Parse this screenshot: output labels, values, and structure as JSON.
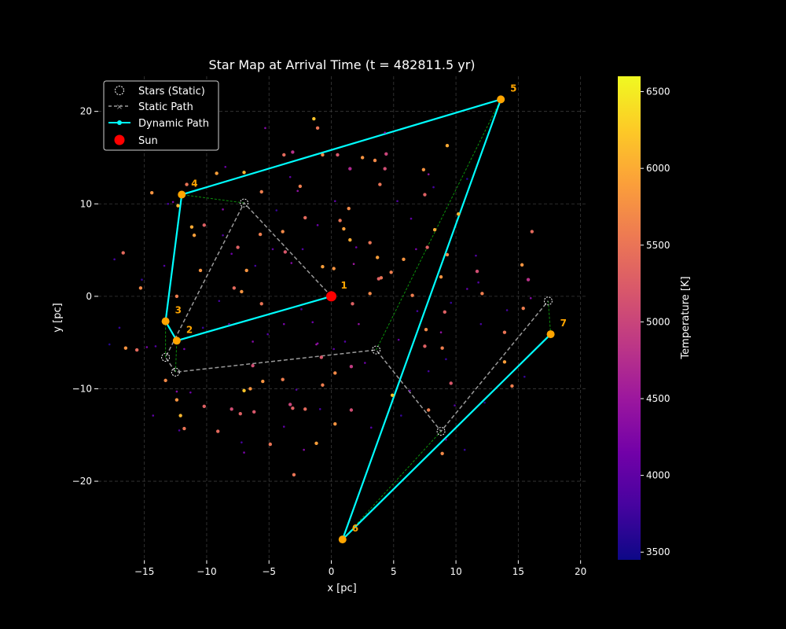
{
  "chart_data": {
    "type": "scatter",
    "title": "Star Map at Arrival Time (t = 482811.5 yr)",
    "xlabel": "x [pc]",
    "ylabel": "y [pc]",
    "xlim": [
      -18.7,
      20.4
    ],
    "ylim": [
      -28.5,
      23.8
    ],
    "xticks": [
      -15,
      -10,
      -5,
      0,
      5,
      10,
      15,
      20
    ],
    "yticks": [
      -20,
      -10,
      0,
      10,
      20
    ],
    "grid": true,
    "legend_location": "top-left",
    "legend": [
      {
        "label": "Stars (Static)",
        "marker": "dashed-circle"
      },
      {
        "label": "Static Path",
        "marker": "gray-dashed-line-x"
      },
      {
        "label": "Dynamic Path",
        "marker": "cyan-line-dot"
      },
      {
        "label": "Sun",
        "marker": "red-dot"
      }
    ],
    "sun": {
      "x": 0.0,
      "y": 0.0,
      "color": "#ff0000"
    },
    "static_path": [
      {
        "x": 0.0,
        "y": 0.0
      },
      {
        "x": -7.0,
        "y": 10.1
      },
      {
        "x": -13.3,
        "y": -6.6
      },
      {
        "x": -12.5,
        "y": -8.2
      },
      {
        "x": 3.6,
        "y": -5.8
      },
      {
        "x": 8.8,
        "y": -14.6
      },
      {
        "x": 17.4,
        "y": -0.5
      }
    ],
    "dynamic_path": [
      {
        "id": "1",
        "x": 0.0,
        "y": 0.0
      },
      {
        "id": "2",
        "x": -12.4,
        "y": -4.8
      },
      {
        "id": "3",
        "x": -13.3,
        "y": -2.7
      },
      {
        "id": "4",
        "x": -12.0,
        "y": 11.0
      },
      {
        "id": "5",
        "x": 13.6,
        "y": 21.3
      },
      {
        "id": "6",
        "x": 0.9,
        "y": -26.3
      },
      {
        "id": "7",
        "x": 17.6,
        "y": -4.1
      }
    ],
    "colorbar": {
      "label": "Temperature [K]",
      "range": [
        3450,
        6600
      ],
      "ticks": [
        3500,
        4000,
        4500,
        5000,
        5500,
        6000,
        6500
      ],
      "colors": [
        "#0d0887",
        "#46039f",
        "#7201a8",
        "#9c179e",
        "#bd3786",
        "#d8576b",
        "#ed7953",
        "#fb9f3a",
        "#fdca26",
        "#f0f921"
      ]
    },
    "background_stars": [
      {
        "x": -14.4,
        "y": 11.2,
        "t": 5800
      },
      {
        "x": -12.3,
        "y": 9.8,
        "t": 6100
      },
      {
        "x": -11.6,
        "y": 12.1,
        "t": 5500
      },
      {
        "x": -11.2,
        "y": 7.5,
        "t": 6000
      },
      {
        "x": -11.0,
        "y": 6.6,
        "t": 5900
      },
      {
        "x": -10.2,
        "y": 7.7,
        "t": 5300
      },
      {
        "x": -9.2,
        "y": 13.3,
        "t": 5900
      },
      {
        "x": -8.5,
        "y": 14.0,
        "t": 4100
      },
      {
        "x": -7.0,
        "y": 13.4,
        "t": 6100
      },
      {
        "x": -5.6,
        "y": 11.3,
        "t": 5600
      },
      {
        "x": -5.3,
        "y": 18.2,
        "t": 4300
      },
      {
        "x": -3.8,
        "y": 15.3,
        "t": 5400
      },
      {
        "x": -3.1,
        "y": 15.6,
        "t": 4800
      },
      {
        "x": -2.7,
        "y": 11.4,
        "t": 4400
      },
      {
        "x": -2.5,
        "y": 11.9,
        "t": 5600
      },
      {
        "x": -1.4,
        "y": 19.2,
        "t": 6200
      },
      {
        "x": -1.1,
        "y": 18.2,
        "t": 5500
      },
      {
        "x": -0.7,
        "y": 15.3,
        "t": 5700
      },
      {
        "x": 0.5,
        "y": 15.3,
        "t": 5200
      },
      {
        "x": 1.5,
        "y": 13.8,
        "t": 4700
      },
      {
        "x": 2.5,
        "y": 15.0,
        "t": 5800
      },
      {
        "x": 3.5,
        "y": 14.7,
        "t": 5700
      },
      {
        "x": 4.4,
        "y": 15.4,
        "t": 5000
      },
      {
        "x": 4.3,
        "y": 13.8,
        "t": 5100
      },
      {
        "x": 3.9,
        "y": 12.1,
        "t": 5500
      },
      {
        "x": 7.4,
        "y": 13.7,
        "t": 5800
      },
      {
        "x": 7.8,
        "y": 13.2,
        "t": 4400
      },
      {
        "x": 9.3,
        "y": 16.3,
        "t": 6000
      },
      {
        "x": 10.2,
        "y": 8.9,
        "t": 6100
      },
      {
        "x": 7.5,
        "y": 11.0,
        "t": 5300
      },
      {
        "x": -5.7,
        "y": 6.7,
        "t": 5600
      },
      {
        "x": -3.9,
        "y": 7.0,
        "t": 5700
      },
      {
        "x": -2.1,
        "y": 8.5,
        "t": 5400
      },
      {
        "x": 0.7,
        "y": 8.2,
        "t": 5500
      },
      {
        "x": 1.4,
        "y": 9.5,
        "t": 5700
      },
      {
        "x": 1.0,
        "y": 7.3,
        "t": 5900
      },
      {
        "x": -7.5,
        "y": 5.3,
        "t": 5300
      },
      {
        "x": -6.8,
        "y": 2.8,
        "t": 5800
      },
      {
        "x": -3.7,
        "y": 4.8,
        "t": 5200
      },
      {
        "x": -0.7,
        "y": 3.2,
        "t": 5900
      },
      {
        "x": 0.2,
        "y": 3.0,
        "t": 5800
      },
      {
        "x": 1.5,
        "y": 6.1,
        "t": 6000
      },
      {
        "x": 3.1,
        "y": 5.8,
        "t": 5500
      },
      {
        "x": 3.7,
        "y": 4.2,
        "t": 5900
      },
      {
        "x": 5.8,
        "y": 4.0,
        "t": 5800
      },
      {
        "x": 7.7,
        "y": 5.3,
        "t": 5300
      },
      {
        "x": 8.3,
        "y": 7.2,
        "t": 6000
      },
      {
        "x": 9.3,
        "y": 4.5,
        "t": 5700
      },
      {
        "x": 3.8,
        "y": 1.9,
        "t": 5300
      },
      {
        "x": 4.0,
        "y": 2.0,
        "t": 5500
      },
      {
        "x": 4.8,
        "y": 2.6,
        "t": 5600
      },
      {
        "x": 8.8,
        "y": 2.1,
        "t": 5800
      },
      {
        "x": 11.7,
        "y": 2.7,
        "t": 5100
      },
      {
        "x": 12.1,
        "y": 0.3,
        "t": 5600
      },
      {
        "x": 15.3,
        "y": 3.4,
        "t": 5800
      },
      {
        "x": 16.1,
        "y": 7.0,
        "t": 5400
      },
      {
        "x": 15.8,
        "y": 1.8,
        "t": 4800
      },
      {
        "x": -10.5,
        "y": 2.8,
        "t": 5800
      },
      {
        "x": -15.3,
        "y": 0.9,
        "t": 5700
      },
      {
        "x": -12.4,
        "y": 0.0,
        "t": 5600
      },
      {
        "x": -7.8,
        "y": 0.9,
        "t": 5400
      },
      {
        "x": -7.2,
        "y": 0.5,
        "t": 5800
      },
      {
        "x": -5.6,
        "y": -0.8,
        "t": 5500
      },
      {
        "x": 1.7,
        "y": -0.8,
        "t": 5300
      },
      {
        "x": 3.1,
        "y": 0.3,
        "t": 5700
      },
      {
        "x": 6.5,
        "y": 0.1,
        "t": 5600
      },
      {
        "x": 9.1,
        "y": -1.7,
        "t": 5300
      },
      {
        "x": 15.4,
        "y": -1.3,
        "t": 5600
      },
      {
        "x": 13.9,
        "y": -3.9,
        "t": 5500
      },
      {
        "x": -16.5,
        "y": -5.6,
        "t": 5800
      },
      {
        "x": -15.6,
        "y": -5.8,
        "t": 5400
      },
      {
        "x": -14.8,
        "y": -5.5,
        "t": 4200
      },
      {
        "x": -13.3,
        "y": -9.1,
        "t": 5700
      },
      {
        "x": -12.4,
        "y": -11.2,
        "t": 5800
      },
      {
        "x": -12.1,
        "y": -12.9,
        "t": 6100
      },
      {
        "x": -11.8,
        "y": -14.3,
        "t": 5500
      },
      {
        "x": -10.2,
        "y": -11.9,
        "t": 5300
      },
      {
        "x": -9.1,
        "y": -14.6,
        "t": 5400
      },
      {
        "x": -8.0,
        "y": -12.2,
        "t": 5100
      },
      {
        "x": -7.3,
        "y": -12.7,
        "t": 5300
      },
      {
        "x": -7.0,
        "y": -10.2,
        "t": 6200
      },
      {
        "x": -6.5,
        "y": -10.0,
        "t": 5800
      },
      {
        "x": -6.2,
        "y": -12.5,
        "t": 5200
      },
      {
        "x": -6.3,
        "y": -7.5,
        "t": 5100
      },
      {
        "x": -5.5,
        "y": -9.2,
        "t": 5800
      },
      {
        "x": -4.9,
        "y": -16.0,
        "t": 5500
      },
      {
        "x": -3.9,
        "y": -9.0,
        "t": 5600
      },
      {
        "x": -3.3,
        "y": -11.7,
        "t": 5000
      },
      {
        "x": -3.1,
        "y": -12.1,
        "t": 5300
      },
      {
        "x": -3.0,
        "y": -19.3,
        "t": 5500
      },
      {
        "x": -2.1,
        "y": -12.2,
        "t": 5400
      },
      {
        "x": -1.2,
        "y": -15.9,
        "t": 5900
      },
      {
        "x": -0.7,
        "y": -9.6,
        "t": 5600
      },
      {
        "x": 0.3,
        "y": -8.3,
        "t": 5700
      },
      {
        "x": 0.3,
        "y": -13.8,
        "t": 5800
      },
      {
        "x": -1.2,
        "y": -5.2,
        "t": 4500
      },
      {
        "x": -0.8,
        "y": -6.6,
        "t": 5200
      },
      {
        "x": 1.6,
        "y": -7.6,
        "t": 4900
      },
      {
        "x": 1.6,
        "y": -12.3,
        "t": 5100
      },
      {
        "x": 4.9,
        "y": -10.7,
        "t": 6200
      },
      {
        "x": 7.6,
        "y": -3.6,
        "t": 5700
      },
      {
        "x": 7.5,
        "y": -5.4,
        "t": 5300
      },
      {
        "x": 7.8,
        "y": -12.3,
        "t": 5600
      },
      {
        "x": 8.9,
        "y": -5.6,
        "t": 5600
      },
      {
        "x": 8.9,
        "y": -17.0,
        "t": 5700
      },
      {
        "x": 9.6,
        "y": -9.4,
        "t": 5200
      },
      {
        "x": 13.9,
        "y": -7.1,
        "t": 5900
      },
      {
        "x": 14.5,
        "y": -9.7,
        "t": 5600
      },
      {
        "x": -17.4,
        "y": 4.0,
        "t": 3800
      },
      {
        "x": -16.7,
        "y": 4.7,
        "t": 5400
      },
      {
        "x": -15.2,
        "y": 1.8,
        "t": 3700
      },
      {
        "x": -13.4,
        "y": 3.3,
        "t": 3900
      },
      {
        "x": -12.7,
        "y": 10.2,
        "t": 4200
      },
      {
        "x": -13.1,
        "y": 10.0,
        "t": 3800
      },
      {
        "x": -8.7,
        "y": 6.6,
        "t": 3900
      },
      {
        "x": -8.0,
        "y": 4.6,
        "t": 4100
      },
      {
        "x": -8.7,
        "y": 9.4,
        "t": 4300
      },
      {
        "x": -6.1,
        "y": 3.3,
        "t": 3800
      },
      {
        "x": -4.7,
        "y": 5.1,
        "t": 4000
      },
      {
        "x": -4.4,
        "y": 9.3,
        "t": 3700
      },
      {
        "x": -3.3,
        "y": 12.9,
        "t": 4000
      },
      {
        "x": -3.2,
        "y": 3.6,
        "t": 4300
      },
      {
        "x": -2.3,
        "y": 5.1,
        "t": 3900
      },
      {
        "x": -1.1,
        "y": 7.7,
        "t": 4100
      },
      {
        "x": 0.3,
        "y": 10.3,
        "t": 4000
      },
      {
        "x": 1.8,
        "y": 3.5,
        "t": 4500
      },
      {
        "x": 2.0,
        "y": 5.3,
        "t": 4100
      },
      {
        "x": 4.3,
        "y": 17.7,
        "t": 4300
      },
      {
        "x": 5.3,
        "y": 10.3,
        "t": 3900
      },
      {
        "x": 6.4,
        "y": 8.4,
        "t": 4000
      },
      {
        "x": 6.8,
        "y": 5.1,
        "t": 4200
      },
      {
        "x": 8.2,
        "y": 11.8,
        "t": 3800
      },
      {
        "x": 10.9,
        "y": 12.7,
        "t": 3600
      },
      {
        "x": 11.6,
        "y": 4.4,
        "t": 3900
      },
      {
        "x": 10.9,
        "y": 0.8,
        "t": 4000
      },
      {
        "x": 9.6,
        "y": -0.7,
        "t": 3700
      },
      {
        "x": 6.9,
        "y": -1.6,
        "t": 3800
      },
      {
        "x": 5.4,
        "y": -4.7,
        "t": 4100
      },
      {
        "x": 2.2,
        "y": -3.0,
        "t": 4400
      },
      {
        "x": 1.1,
        "y": -4.9,
        "t": 3900
      },
      {
        "x": -1.5,
        "y": -2.8,
        "t": 4100
      },
      {
        "x": -2.4,
        "y": -1.4,
        "t": 3800
      },
      {
        "x": -3.8,
        "y": -3.0,
        "t": 4200
      },
      {
        "x": -5.1,
        "y": -4.1,
        "t": 3900
      },
      {
        "x": -6.3,
        "y": -4.9,
        "t": 4300
      },
      {
        "x": -8.2,
        "y": -3.0,
        "t": 4000
      },
      {
        "x": -9.0,
        "y": -0.5,
        "t": 3800
      },
      {
        "x": -10.3,
        "y": -3.4,
        "t": 3700
      },
      {
        "x": -11.8,
        "y": -5.7,
        "t": 4200
      },
      {
        "x": -14.1,
        "y": -5.4,
        "t": 3900
      },
      {
        "x": -17.0,
        "y": -3.4,
        "t": 3700
      },
      {
        "x": -17.8,
        "y": -5.2,
        "t": 3600
      },
      {
        "x": -14.3,
        "y": -12.9,
        "t": 4000
      },
      {
        "x": -12.4,
        "y": -10.3,
        "t": 4300
      },
      {
        "x": -12.2,
        "y": -14.5,
        "t": 3900
      },
      {
        "x": -11.3,
        "y": -10.4,
        "t": 4100
      },
      {
        "x": -7.0,
        "y": -16.9,
        "t": 4200
      },
      {
        "x": -7.2,
        "y": -15.8,
        "t": 3800
      },
      {
        "x": -3.8,
        "y": -14.1,
        "t": 4000
      },
      {
        "x": -2.8,
        "y": -10.1,
        "t": 3900
      },
      {
        "x": -2.2,
        "y": -16.6,
        "t": 4300
      },
      {
        "x": -0.9,
        "y": -12.2,
        "t": 3800
      },
      {
        "x": -1.1,
        "y": -5.1,
        "t": 4300
      },
      {
        "x": 0.2,
        "y": -5.7,
        "t": 4000
      },
      {
        "x": 2.7,
        "y": -7.2,
        "t": 4100
      },
      {
        "x": 3.2,
        "y": -14.2,
        "t": 3900
      },
      {
        "x": 5.6,
        "y": -12.9,
        "t": 3700
      },
      {
        "x": 6.3,
        "y": -10.2,
        "t": 4000
      },
      {
        "x": 7.8,
        "y": -8.1,
        "t": 3800
      },
      {
        "x": 8.8,
        "y": -3.9,
        "t": 4400
      },
      {
        "x": 9.2,
        "y": -6.8,
        "t": 3700
      },
      {
        "x": 9.9,
        "y": -11.8,
        "t": 3900
      },
      {
        "x": 12.0,
        "y": -3.0,
        "t": 3800
      },
      {
        "x": 12.3,
        "y": -11.5,
        "t": 3600
      },
      {
        "x": 10.7,
        "y": -16.6,
        "t": 3700
      },
      {
        "x": 9.2,
        "y": -15.5,
        "t": 4000
      },
      {
        "x": 16.0,
        "y": -0.2,
        "t": 4300
      },
      {
        "x": 14.1,
        "y": -1.5,
        "t": 3800
      },
      {
        "x": 15.5,
        "y": -8.7,
        "t": 3700
      },
      {
        "x": 11.8,
        "y": 1.5,
        "t": 3900
      }
    ]
  }
}
